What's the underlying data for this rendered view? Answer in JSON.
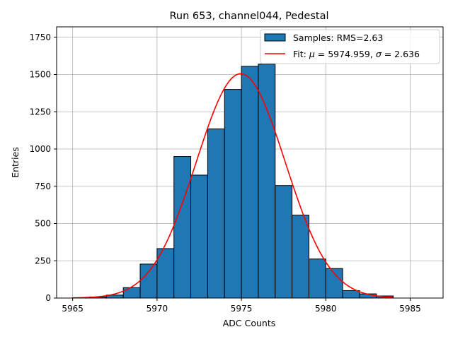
{
  "chart_data": {
    "type": "bar",
    "title": "Run 653, channel044, Pedestal",
    "xlabel": "ADC Counts",
    "ylabel": "Entries",
    "xlim": [
      5964.05,
      5986.95
    ],
    "ylim": [
      0,
      1820
    ],
    "x_ticks": [
      5965,
      5970,
      5975,
      5980,
      5985
    ],
    "y_ticks": [
      0,
      250,
      500,
      750,
      1000,
      1250,
      1500,
      1750
    ],
    "grid": true,
    "legend_position": "upper right",
    "histogram": {
      "name": "Samples: RMS=2.63",
      "color": "#1f77b4",
      "bin_width": 1,
      "bin_starts": [
        5965,
        5966,
        5967,
        5968,
        5969,
        5970,
        5971,
        5972,
        5973,
        5974,
        5975,
        5976,
        5977,
        5978,
        5979,
        5980,
        5981,
        5982,
        5983,
        5984,
        5985
      ],
      "counts": [
        2,
        7,
        20,
        70,
        228,
        332,
        950,
        825,
        1135,
        1400,
        1555,
        1570,
        755,
        557,
        262,
        198,
        50,
        28,
        14,
        0,
        0
      ]
    },
    "fit": {
      "name": "Fit: μ = 5974.959, σ = 2.636",
      "name_parts": {
        "prefix": "Fit: ",
        "mu_symbol": "μ",
        "mu_value": " = 5974.959, ",
        "sigma_symbol": "σ",
        "sigma_value": " = 2.636"
      },
      "color": "#ff0000",
      "mu": 5974.959,
      "sigma": 2.636,
      "amplitude": 1505,
      "x_range": [
        5965,
        5984
      ]
    }
  }
}
